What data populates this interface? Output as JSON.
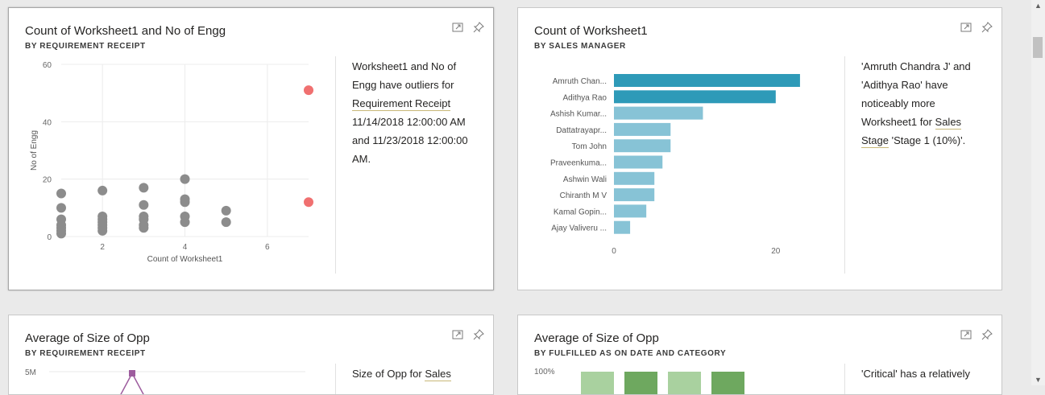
{
  "cards": [
    {
      "title": "Count of Worksheet1 and No of Engg",
      "subtitle": "BY REQUIREMENT RECEIPT",
      "insight": {
        "p1": "Worksheet1 and No of Engg have outliers for ",
        "link1": "Requirement Receipt",
        "p2": " 11/14/2018 12:00:00 AM and 11/23/2018 12:00:00 AM."
      }
    },
    {
      "title": "Count of Worksheet1",
      "subtitle": "BY SALES MANAGER",
      "insight": {
        "p1": "'Amruth Chandra J' and 'Adithya Rao' have noticeably more Worksheet1 for ",
        "link1": "Sales Stage",
        "p2": " 'Stage 1 (10%)'."
      }
    },
    {
      "title": "Average of Size of Opp",
      "subtitle": "BY REQUIREMENT RECEIPT",
      "insight": {
        "p1": "Size of Opp for ",
        "link1": "Sales",
        "p2": ""
      }
    },
    {
      "title": "Average of Size of Opp",
      "subtitle": "BY FULFILLED AS ON DATE AND CATEGORY",
      "insight": {
        "p1": "'Critical' has a relatively",
        "link1": "",
        "p2": ""
      }
    }
  ],
  "icons": {
    "focus": "focus-mode-icon",
    "pin": "pin-icon"
  },
  "colors": {
    "scatter_normal": "#8c8c8c",
    "scatter_outlier": "#f07070",
    "bar_highlight": "#2e9ab8",
    "bar_normal": "#87c3d6",
    "purple": "#9d5c9e",
    "green_light": "#a9d19f",
    "green_dark": "#6ea85f"
  },
  "chart_data": [
    {
      "type": "scatter",
      "xlabel": "Count of Worksheet1",
      "ylabel": "No of Engg",
      "xlim": [
        1,
        7
      ],
      "ylim": [
        0,
        60
      ],
      "xticks": [
        2,
        4,
        6
      ],
      "yticks": [
        0,
        20,
        40,
        60
      ],
      "grid": true,
      "points": [
        {
          "x": 1,
          "y": 15
        },
        {
          "x": 1,
          "y": 10
        },
        {
          "x": 1,
          "y": 6
        },
        {
          "x": 1,
          "y": 4
        },
        {
          "x": 1,
          "y": 3
        },
        {
          "x": 1,
          "y": 2
        },
        {
          "x": 1,
          "y": 1
        },
        {
          "x": 2,
          "y": 16
        },
        {
          "x": 2,
          "y": 7
        },
        {
          "x": 2,
          "y": 6
        },
        {
          "x": 2,
          "y": 5
        },
        {
          "x": 2,
          "y": 4
        },
        {
          "x": 2,
          "y": 3
        },
        {
          "x": 2,
          "y": 2
        },
        {
          "x": 3,
          "y": 17
        },
        {
          "x": 3,
          "y": 11
        },
        {
          "x": 3,
          "y": 7
        },
        {
          "x": 3,
          "y": 6
        },
        {
          "x": 3,
          "y": 4
        },
        {
          "x": 3,
          "y": 3
        },
        {
          "x": 4,
          "y": 20
        },
        {
          "x": 4,
          "y": 13
        },
        {
          "x": 4,
          "y": 12
        },
        {
          "x": 4,
          "y": 7
        },
        {
          "x": 4,
          "y": 5
        },
        {
          "x": 5,
          "y": 9
        },
        {
          "x": 5,
          "y": 5
        }
      ],
      "outliers": [
        {
          "x": 7,
          "y": 51
        },
        {
          "x": 7,
          "y": 12
        }
      ]
    },
    {
      "type": "bar",
      "orientation": "horizontal",
      "categories": [
        "Amruth Chan...",
        "Adithya Rao",
        "Ashish Kumar...",
        "Dattatrayapr...",
        "Tom John",
        "Praveenkuma...",
        "Ashwin Wali",
        "Chiranth M V",
        "Kamal Gopin...",
        "Ajay Valiveru ..."
      ],
      "values": [
        23,
        20,
        11,
        7,
        7,
        6,
        5,
        5,
        4,
        2
      ],
      "highlighted": [
        0,
        1
      ],
      "xlim": [
        0,
        25
      ],
      "xticks": [
        0,
        20
      ]
    },
    {
      "type": "line",
      "yticks_labels": [
        "5M"
      ],
      "note": ""
    },
    {
      "type": "bar",
      "yticks_labels": [
        "100%"
      ]
    }
  ]
}
